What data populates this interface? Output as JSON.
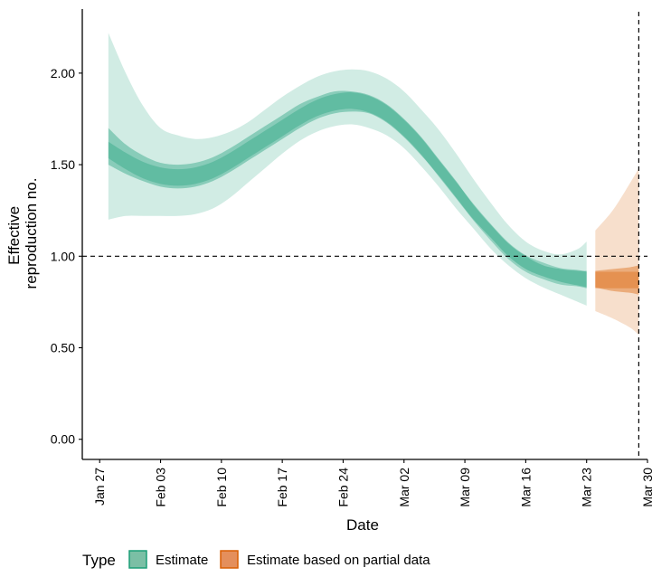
{
  "chart_data": {
    "type": "area",
    "xlabel": "Date",
    "ylabel_lines": [
      "Effective",
      "reproduction no."
    ],
    "x_ticks": [
      "Jan 27",
      "Feb 03",
      "Feb 10",
      "Feb 17",
      "Feb 24",
      "Mar 02",
      "Mar 09",
      "Mar 16",
      "Mar 23",
      "Mar 30"
    ],
    "y_ticks": [
      "0.00",
      "0.50",
      "1.00",
      "1.50",
      "2.00"
    ],
    "xlim": [
      "2020-01-25",
      "2020-03-30"
    ],
    "ylim": [
      -0.11,
      2.35
    ],
    "reference_lines": {
      "horizontal_y": 1.0,
      "vertical_x": "2020-03-29",
      "style": "dashed"
    },
    "legend": {
      "title": "Type",
      "position": "bottom",
      "items": [
        {
          "label": "Estimate",
          "color": "#1b9e77"
        },
        {
          "label": "Estimate based on partial data",
          "color": "#d95f02"
        }
      ]
    },
    "series": [
      {
        "name": "Estimate",
        "color": "#1b9e77",
        "x": [
          "2020-01-28",
          "2020-01-30",
          "2020-02-01",
          "2020-02-03",
          "2020-02-05",
          "2020-02-07",
          "2020-02-09",
          "2020-02-11",
          "2020-02-13",
          "2020-02-15",
          "2020-02-17",
          "2020-02-19",
          "2020-02-21",
          "2020-02-23",
          "2020-02-25",
          "2020-02-27",
          "2020-02-29",
          "2020-03-02",
          "2020-03-04",
          "2020-03-06",
          "2020-03-08",
          "2020-03-10",
          "2020-03-12",
          "2020-03-14",
          "2020-03-16",
          "2020-03-18",
          "2020-03-20",
          "2020-03-22",
          "2020-03-23"
        ],
        "median": [
          1.58,
          1.52,
          1.47,
          1.44,
          1.43,
          1.44,
          1.47,
          1.52,
          1.58,
          1.64,
          1.7,
          1.76,
          1.81,
          1.84,
          1.85,
          1.83,
          1.78,
          1.7,
          1.6,
          1.48,
          1.36,
          1.24,
          1.13,
          1.03,
          0.96,
          0.92,
          0.89,
          0.88,
          0.87
        ],
        "ci50": [
          [
            1.5,
            1.7
          ],
          [
            1.45,
            1.61
          ],
          [
            1.41,
            1.55
          ],
          [
            1.38,
            1.51
          ],
          [
            1.37,
            1.5
          ],
          [
            1.38,
            1.51
          ],
          [
            1.41,
            1.54
          ],
          [
            1.46,
            1.59
          ],
          [
            1.52,
            1.65
          ],
          [
            1.58,
            1.71
          ],
          [
            1.64,
            1.77
          ],
          [
            1.7,
            1.83
          ],
          [
            1.75,
            1.87
          ],
          [
            1.78,
            1.9
          ],
          [
            1.79,
            1.9
          ],
          [
            1.78,
            1.88
          ],
          [
            1.73,
            1.83
          ],
          [
            1.65,
            1.75
          ],
          [
            1.55,
            1.65
          ],
          [
            1.44,
            1.53
          ],
          [
            1.32,
            1.41
          ],
          [
            1.2,
            1.28
          ],
          [
            1.1,
            1.17
          ],
          [
            1.0,
            1.07
          ],
          [
            0.93,
            1.0
          ],
          [
            0.89,
            0.95
          ],
          [
            0.86,
            0.93
          ],
          [
            0.84,
            0.92
          ],
          [
            0.83,
            0.92
          ]
        ],
        "ci90": [
          [
            1.2,
            2.22
          ],
          [
            1.22,
            2.0
          ],
          [
            1.22,
            1.82
          ],
          [
            1.22,
            1.7
          ],
          [
            1.22,
            1.66
          ],
          [
            1.23,
            1.64
          ],
          [
            1.26,
            1.65
          ],
          [
            1.32,
            1.68
          ],
          [
            1.4,
            1.73
          ],
          [
            1.48,
            1.8
          ],
          [
            1.56,
            1.87
          ],
          [
            1.63,
            1.93
          ],
          [
            1.68,
            1.98
          ],
          [
            1.71,
            2.01
          ],
          [
            1.72,
            2.02
          ],
          [
            1.7,
            2.01
          ],
          [
            1.66,
            1.97
          ],
          [
            1.59,
            1.9
          ],
          [
            1.49,
            1.8
          ],
          [
            1.38,
            1.69
          ],
          [
            1.26,
            1.56
          ],
          [
            1.15,
            1.42
          ],
          [
            1.04,
            1.29
          ],
          [
            0.95,
            1.17
          ],
          [
            0.88,
            1.08
          ],
          [
            0.83,
            1.03
          ],
          [
            0.79,
            1.01
          ],
          [
            0.75,
            1.04
          ],
          [
            0.73,
            1.08
          ]
        ]
      },
      {
        "name": "Estimate based on partial data",
        "color": "#d95f02",
        "x": [
          "2020-03-24",
          "2020-03-26",
          "2020-03-28",
          "2020-03-29"
        ],
        "median": [
          0.87,
          0.87,
          0.87,
          0.87
        ],
        "ci50": [
          [
            0.83,
            0.92
          ],
          [
            0.81,
            0.93
          ],
          [
            0.8,
            0.94
          ],
          [
            0.79,
            0.95
          ]
        ],
        "ci90": [
          [
            0.7,
            1.14
          ],
          [
            0.66,
            1.25
          ],
          [
            0.61,
            1.4
          ],
          [
            0.57,
            1.48
          ]
        ]
      }
    ]
  }
}
